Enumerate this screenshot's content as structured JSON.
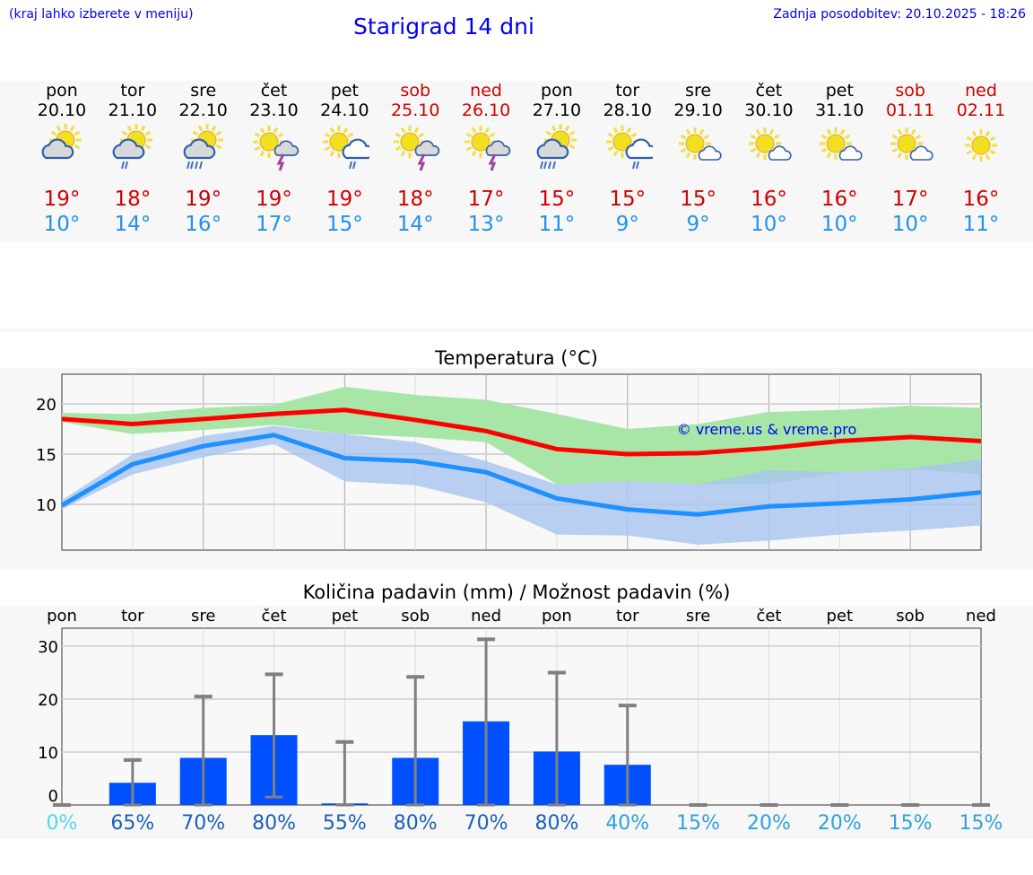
{
  "header": {
    "hint": "(kraj lahko izberete v meniju)",
    "title": "Starigrad 14 dni",
    "updated": "Zadnja posodobitev: 20.10.2025 - 18:26"
  },
  "days": [
    {
      "name": "pon",
      "date": "20.10",
      "max": "19°",
      "min": "10°",
      "icon": "sun-cloud-icon",
      "weekend": false
    },
    {
      "name": "tor",
      "date": "21.10",
      "max": "18°",
      "min": "14°",
      "icon": "sun-cloud-rain-icon",
      "weekend": false
    },
    {
      "name": "sre",
      "date": "22.10",
      "max": "19°",
      "min": "16°",
      "icon": "sun-cloud-heavy-rain-icon",
      "weekend": false
    },
    {
      "name": "čet",
      "date": "23.10",
      "max": "19°",
      "min": "17°",
      "icon": "sun-thunderstorm-icon",
      "weekend": false
    },
    {
      "name": "pet",
      "date": "24.10",
      "max": "19°",
      "min": "15°",
      "icon": "sun-white-cloud-rain-icon",
      "weekend": false
    },
    {
      "name": "sob",
      "date": "25.10",
      "max": "18°",
      "min": "14°",
      "icon": "sun-thunderstorm-icon",
      "weekend": true
    },
    {
      "name": "ned",
      "date": "26.10",
      "max": "17°",
      "min": "13°",
      "icon": "sun-thunderstorm-icon",
      "weekend": true
    },
    {
      "name": "pon",
      "date": "27.10",
      "max": "15°",
      "min": "11°",
      "icon": "sun-cloud-heavy-rain-icon",
      "weekend": false
    },
    {
      "name": "tor",
      "date": "28.10",
      "max": "15°",
      "min": "9°",
      "icon": "sun-white-cloud-rain-icon",
      "weekend": false
    },
    {
      "name": "sre",
      "date": "29.10",
      "max": "15°",
      "min": "9°",
      "icon": "sun-small-cloud-icon",
      "weekend": false
    },
    {
      "name": "čet",
      "date": "30.10",
      "max": "16°",
      "min": "10°",
      "icon": "sun-small-cloud-icon",
      "weekend": false
    },
    {
      "name": "pet",
      "date": "31.10",
      "max": "16°",
      "min": "10°",
      "icon": "sun-small-cloud-icon",
      "weekend": false
    },
    {
      "name": "sob",
      "date": "01.11",
      "max": "17°",
      "min": "10°",
      "icon": "sun-small-cloud-icon",
      "weekend": true
    },
    {
      "name": "ned",
      "date": "02.11",
      "max": "16°",
      "min": "11°",
      "icon": "sun-icon",
      "weekend": true
    }
  ],
  "colors": {
    "max": "#ff0000",
    "min": "#1e90ff",
    "maxBand": "#a8e6a8",
    "minBand": "#a8c4f0",
    "bar": "#0050ff",
    "err": "#808080"
  },
  "chart_data": [
    {
      "type": "line",
      "title": "Temperatura (°C)",
      "ylim": [
        5.45,
        22.95
      ],
      "yticks": [
        10,
        15,
        20
      ],
      "watermark": "© vreme.us & vreme.pro",
      "series": [
        {
          "name": "max",
          "values": [
            18.5,
            18.0,
            18.5,
            19.0,
            19.4,
            18.4,
            17.3,
            15.5,
            15.0,
            15.1,
            15.6,
            16.3,
            16.7,
            16.3
          ],
          "band_upper": [
            19.1,
            19.0,
            19.6,
            19.9,
            21.7,
            20.9,
            20.4,
            19.0,
            17.5,
            18.0,
            19.2,
            19.4,
            19.8,
            19.6
          ],
          "band_lower": [
            18.2,
            17.0,
            17.4,
            17.9,
            17.0,
            16.7,
            16.2,
            12.0,
            12.3,
            12.0,
            12.0,
            13.2,
            13.5,
            13.0
          ]
        },
        {
          "name": "min",
          "values": [
            9.9,
            14.0,
            15.8,
            16.9,
            14.6,
            14.3,
            13.2,
            10.6,
            9.5,
            9.0,
            9.8,
            10.1,
            10.5,
            11.2
          ],
          "band_upper": [
            10.4,
            15.0,
            16.8,
            17.8,
            17.0,
            16.2,
            14.3,
            12.0,
            12.3,
            12.0,
            13.4,
            13.2,
            13.6,
            14.5
          ],
          "band_lower": [
            9.5,
            13.0,
            14.7,
            16.0,
            12.3,
            11.9,
            10.2,
            7.0,
            6.9,
            6.0,
            6.4,
            7.0,
            7.4,
            7.9
          ]
        }
      ]
    },
    {
      "type": "bar",
      "title": "Količina padavin (mm) / Možnost padavin (%)",
      "ylim": [
        0,
        33.4
      ],
      "yticks": [
        0,
        10,
        20,
        30
      ],
      "categories": [
        "pon",
        "tor",
        "sre",
        "čet",
        "pet",
        "sob",
        "ned",
        "pon",
        "tor",
        "sre",
        "čet",
        "pet",
        "sob",
        "ned"
      ],
      "values": [
        0,
        4.2,
        8.9,
        13.2,
        0.3,
        8.9,
        15.8,
        10.1,
        7.6,
        0,
        0,
        0,
        0,
        0
      ],
      "err_upper": [
        0,
        8.5,
        20.5,
        24.7,
        11.9,
        24.2,
        31.3,
        25.0,
        18.8,
        0,
        0,
        0,
        0,
        0
      ],
      "err_lower": [
        0,
        0,
        0,
        1.5,
        0,
        0,
        0,
        0,
        0,
        0,
        0,
        0,
        0,
        0
      ],
      "probability": [
        "0%",
        "65%",
        "70%",
        "80%",
        "55%",
        "80%",
        "70%",
        "80%",
        "40%",
        "15%",
        "20%",
        "20%",
        "15%",
        "15%"
      ],
      "probability_colors": [
        "#50d8e8",
        "#1a60b8",
        "#1a60b8",
        "#1a60b8",
        "#1a60b8",
        "#1a60b8",
        "#1a60b8",
        "#1a60b8",
        "#30a0e0",
        "#30a0e0",
        "#30a0e0",
        "#30a0e0",
        "#30a0e0",
        "#30a0e0"
      ]
    }
  ]
}
